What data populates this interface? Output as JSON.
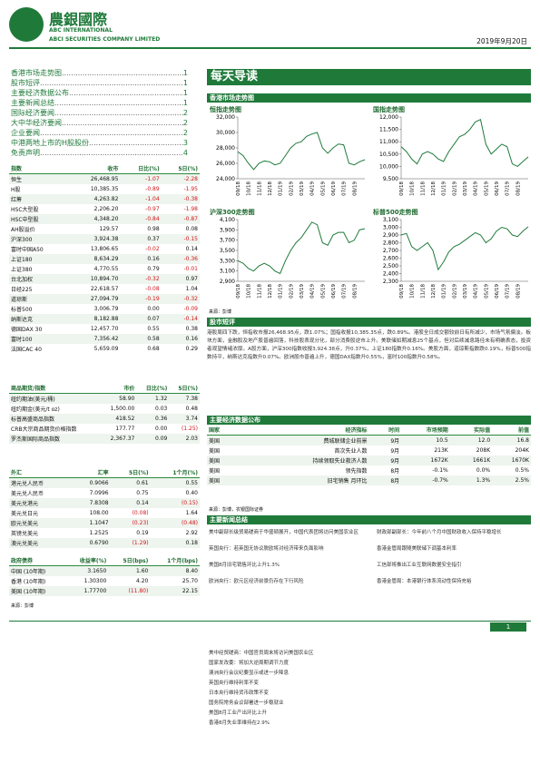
{
  "header": {
    "company_cn": "農銀國際",
    "company_en": "ABC INTERNATIONAL",
    "company_full": "ABCI SECURITIES COMPANY LIMITED",
    "date": "2019年9月20日"
  },
  "toc": [
    {
      "title": "香港市场走势图",
      "page": "1"
    },
    {
      "title": "股市短评",
      "page": "1"
    },
    {
      "title": "主要经济数据公布",
      "page": "1"
    },
    {
      "title": "主要新闻总结",
      "page": "1"
    },
    {
      "title": "国际经济要闻",
      "page": "2"
    },
    {
      "title": "大中华经济要闻",
      "page": "2"
    },
    {
      "title": "企业要闻",
      "page": "2"
    },
    {
      "title": "中港两地上市的H股股份",
      "page": "3"
    },
    {
      "title": "免责声明",
      "page": "4"
    }
  ],
  "index_table": {
    "header": [
      "指数",
      "收市",
      "日比(%)",
      "5日(%)"
    ],
    "rows": [
      [
        "恒生",
        "26,468.95",
        "-1.07",
        "-2.28"
      ],
      [
        "H股",
        "10,385.35",
        "-0.89",
        "-1.95"
      ],
      [
        "红筹",
        "4,263.82",
        "-1.04",
        "-0.38"
      ],
      [
        "HSC大型股",
        "2,206.20",
        "-0.97",
        "-1.98"
      ],
      [
        "HSC中型股",
        "4,348.20",
        "-0.84",
        "-0.87"
      ],
      [
        "AH股溢价",
        "129.57",
        "0.98",
        "0.08"
      ],
      [
        "沪深300",
        "3,924.38",
        "0.37",
        "-0.15"
      ],
      [
        "富时中国A50",
        "13,806.65",
        "-0.02",
        "0.14"
      ],
      [
        "上证180",
        "8,634.29",
        "0.16",
        "-0.36"
      ],
      [
        "上证380",
        "4,770.55",
        "0.79",
        "-0.01"
      ],
      [
        "台北加权",
        "10,894.70",
        "-0.32",
        "0.97"
      ],
      [
        "日经225",
        "22,618.57",
        "-0.08",
        "1.04"
      ],
      [
        "道琼斯",
        "27,094.79",
        "-0.19",
        "-0.32"
      ],
      [
        "标普500",
        "3,006.79",
        "0.00",
        "-0.09"
      ],
      [
        "纳斯达克",
        "8,182.88",
        "0.07",
        "-0.14"
      ],
      [
        "德国DAX 30",
        "12,457.70",
        "0.55",
        "0.38"
      ],
      [
        "富时100",
        "7,356.42",
        "0.58",
        "0.16"
      ],
      [
        "法国CAC 40",
        "5,659.09",
        "0.68",
        "0.29"
      ]
    ]
  },
  "commodity_table": {
    "header": [
      "商品期货/指数",
      "市价",
      "日比(%)",
      "5日(%)"
    ],
    "rows": [
      [
        "纽约期油(美元/桶)",
        "58.90",
        "1.32",
        "7.38"
      ],
      [
        "纽约期金(美元/t oz)",
        "1,500.00",
        "0.03",
        "0.48"
      ],
      [
        "标普高盛商品指数",
        "418.52",
        "0.36",
        "3.74"
      ],
      [
        "CRB大宗商品期货价格指数",
        "177.77",
        "0.00",
        "(1.25)"
      ],
      [
        "罗杰斯国际商品指数",
        "2,367.37",
        "0.09",
        "2.03"
      ]
    ]
  },
  "fx_table": {
    "header": [
      "外汇",
      "汇率",
      "5日(%)",
      "1个月(%)"
    ],
    "rows": [
      [
        "港元兑人民币",
        "0.9066",
        "0.61",
        "0.55"
      ],
      [
        "美元兑人民币",
        "7.0996",
        "0.75",
        "0.40"
      ],
      [
        "美元兑港元",
        "7.8308",
        "0.14",
        "(0.15)"
      ],
      [
        "美元兑日元",
        "108.00",
        "(0.08)",
        "1.64"
      ],
      [
        "欧元兑美元",
        "1.1047",
        "(0.23)",
        "(0.48)"
      ],
      [
        "英镑兑美元",
        "1.2525",
        "0.19",
        "2.92"
      ],
      [
        "澳元兑美元",
        "0.6790",
        "(1.29)",
        "0.18"
      ]
    ]
  },
  "bond_table": {
    "header": [
      "政府债券",
      "收益率(%)",
      "5日(bps)",
      "1个月(bps)"
    ],
    "rows": [
      [
        "中国 (10年期)",
        "3.1650",
        "1.60",
        "8.40"
      ],
      [
        "香港 (10年期)",
        "1.30300",
        "4.20",
        "25.70"
      ],
      [
        "美国 (10年期)",
        "1.77700",
        "(11.80)",
        "22.15"
      ]
    ],
    "source": "来源：彭博"
  },
  "banner": "每天导读",
  "chart_section": {
    "title": "香港市场走势图",
    "source": "来源：彭博"
  },
  "chart_data": [
    {
      "type": "line",
      "title": "恒指走势图",
      "categories": [
        "09/18",
        null,
        "10/18",
        null,
        "11/18",
        null,
        "12/18",
        null,
        "01/19",
        null,
        "02/19",
        null,
        "03/19",
        null,
        "04/19",
        null,
        "05/19",
        null,
        "06/19",
        null,
        "07/19",
        null,
        "08/19",
        null,
        null
      ],
      "values": [
        27500,
        27000,
        26000,
        25200,
        26000,
        26300,
        26200,
        25800,
        26000,
        27000,
        28000,
        28600,
        28800,
        29500,
        29800,
        30000,
        28000,
        27300,
        28000,
        28500,
        28400,
        26000,
        25800,
        26200,
        26468.95
      ],
      "color": "#1f7a3a",
      "ylim": [
        24000,
        32000
      ],
      "yticks": [
        {
          "value": 24000,
          "label": "24,000"
        },
        {
          "value": 26000,
          "label": "26,000"
        },
        {
          "value": 28000,
          "label": "28,000"
        },
        {
          "value": 30000,
          "label": "30,000"
        },
        {
          "value": 32000,
          "label": "32,000"
        }
      ]
    },
    {
      "type": "line",
      "title": "国指走势图",
      "categories": [
        "09/18",
        null,
        "10/18",
        null,
        "11/18",
        null,
        "12/18",
        null,
        "01/19",
        null,
        "02/19",
        null,
        "03/19",
        null,
        "04/19",
        null,
        "05/19",
        null,
        "06/19",
        null,
        "07/19",
        null,
        "08/19",
        null,
        null
      ],
      "values": [
        10800,
        10600,
        10300,
        10100,
        10500,
        10600,
        10500,
        10300,
        10200,
        10600,
        10900,
        11200,
        11300,
        11500,
        11800,
        11900,
        10900,
        10500,
        10700,
        10900,
        10800,
        10100,
        10000,
        10200,
        10385.35
      ],
      "color": "#1f7a3a",
      "ylim": [
        9500,
        12000
      ],
      "yticks": [
        {
          "value": 9500,
          "label": "9,500"
        },
        {
          "value": 10000,
          "label": "10,000"
        },
        {
          "value": 10500,
          "label": "10,500"
        },
        {
          "value": 11000,
          "label": "11,000"
        },
        {
          "value": 11500,
          "label": "11,500"
        },
        {
          "value": 12000,
          "label": "12,000"
        }
      ]
    },
    {
      "type": "line",
      "title": "沪深300走势图",
      "categories": [
        "09/18",
        null,
        "10/18",
        null,
        "11/18",
        null,
        "12/18",
        null,
        "01/19",
        null,
        "02/19",
        null,
        "03/19",
        null,
        "04/19",
        null,
        "05/19",
        null,
        "06/19",
        null,
        "07/19",
        null,
        "08/19",
        null,
        null
      ],
      "values": [
        3300,
        3250,
        3150,
        3100,
        3200,
        3250,
        3200,
        3100,
        3050,
        3300,
        3500,
        3650,
        3750,
        3900,
        4050,
        4000,
        3650,
        3600,
        3800,
        3850,
        3850,
        3650,
        3700,
        3900,
        3924.38
      ],
      "color": "#1f7a3a",
      "ylim": [
        2900,
        4100
      ],
      "yticks": [
        {
          "value": 2900,
          "label": "2,900"
        },
        {
          "value": 3100,
          "label": "3,100"
        },
        {
          "value": 3300,
          "label": "3,300"
        },
        {
          "value": 3500,
          "label": "3,500"
        },
        {
          "value": 3700,
          "label": "3,700"
        },
        {
          "value": 3900,
          "label": "3,900"
        },
        {
          "value": 4100,
          "label": "4,100"
        }
      ]
    },
    {
      "type": "line",
      "title": "标普500走势图",
      "categories": [
        "09/18",
        null,
        "10/18",
        null,
        "11/18",
        null,
        "12/18",
        null,
        "01/19",
        null,
        "02/19",
        null,
        "03/19",
        null,
        "04/19",
        null,
        "05/19",
        null,
        "06/19",
        null,
        "07/19",
        null,
        "08/19",
        null,
        null
      ],
      "values": [
        2900,
        2920,
        2750,
        2700,
        2750,
        2800,
        2700,
        2450,
        2550,
        2680,
        2750,
        2780,
        2830,
        2880,
        2930,
        2900,
        2800,
        2850,
        2950,
        3000,
        2980,
        2900,
        2880,
        2950,
        3006.79
      ],
      "color": "#1f7a3a",
      "ylim": [
        2300,
        3100
      ],
      "yticks": [
        {
          "value": 2300,
          "label": "2,300"
        },
        {
          "value": 2400,
          "label": "2,400"
        },
        {
          "value": 2500,
          "label": "2,500"
        },
        {
          "value": 2600,
          "label": "2,600"
        },
        {
          "value": 2700,
          "label": "2,700"
        },
        {
          "value": 2800,
          "label": "2,800"
        },
        {
          "value": 2900,
          "label": "2,900"
        },
        {
          "value": 3000,
          "label": "3,000"
        },
        {
          "value": 3100,
          "label": "3,100"
        }
      ]
    }
  ],
  "commentary": {
    "title": "股市短评",
    "text": "港股周四下跌，恒指收市报26,468.95点，跌1.07%；国指收报10,385.35点，跌0.89%。港股全日成交额较前日有所减少，市场气氛偏淡。板块方面，金融股及地产股普遍回落，科技股表现分化，部分消费股逆市上升。美联储如期减息25个基点，但对后续减息路径未有明确表态，投资者观望情绪浓厚。A股方面，沪深300指数收报3,924.38点，升0.37%，上证180指数升0.16%。美股方面，道琼斯指数跌0.19%，标普500指数持平，纳斯达克指数升0.07%。欧洲股市普遍上升，德国DAX指数升0.55%，富时100指数升0.58%。"
  },
  "econ": {
    "title": "主要经济数据公布",
    "header": [
      "国家",
      "经济指标",
      "时间",
      "市场预期",
      "实际值",
      "前值"
    ],
    "rows": [
      [
        "美国",
        "费城联储企业前景",
        "9月",
        "10.5",
        "12.0",
        "16.8"
      ],
      [
        "美国",
        "首次失业人数",
        "9月",
        "213K",
        "208K",
        "204K"
      ],
      [
        "美国",
        "持续领取失业救济人数",
        "9月",
        "1672K",
        "1661K",
        "1670K"
      ],
      [
        "美国",
        "领先指数",
        "8月",
        "-0.1%",
        "0.0%",
        "0.5%"
      ],
      [
        "美国",
        "旧宅销售 月环比",
        "8月",
        "-0.7%",
        "1.3%",
        "2.5%"
      ]
    ],
    "source": "来源：彭博，农银国际证券"
  },
  "news": {
    "title": "主要新闻总结",
    "left": [
      "美中副部长级贸易磋商于华盛顿展开，中国代表团将访问美国农业区",
      "英国央行：若英国无协议脱欧将对经济带来负面影响",
      "美国8月旧宅销售环比上升1.3%",
      "欧洲央行：欧元区经济前景仍存在下行风险"
    ],
    "right": [
      "财政部副部长：今年前八个月中国财政收入保持平稳增长",
      "香港金管局跟随美联储下调基本利率",
      "工信部将推出工业互联网数据安全指引",
      "香港金管局：本港银行体系流动性保持充裕"
    ]
  },
  "more_news": [
    "美中经贸磋商：中国官员周末将访问美国农业区",
    "国家发改委：将加大逆周期调节力度",
    "澳洲央行会议纪要显示或进一步降息",
    "英国央行维持利率不变",
    "日本央行维持货币政策不变",
    "国务院常务会议部署进一步稳就业",
    "美国8月工业产出环比上升",
    "香港8月失业率维持在2.9%"
  ],
  "footer": {
    "page": "1"
  }
}
